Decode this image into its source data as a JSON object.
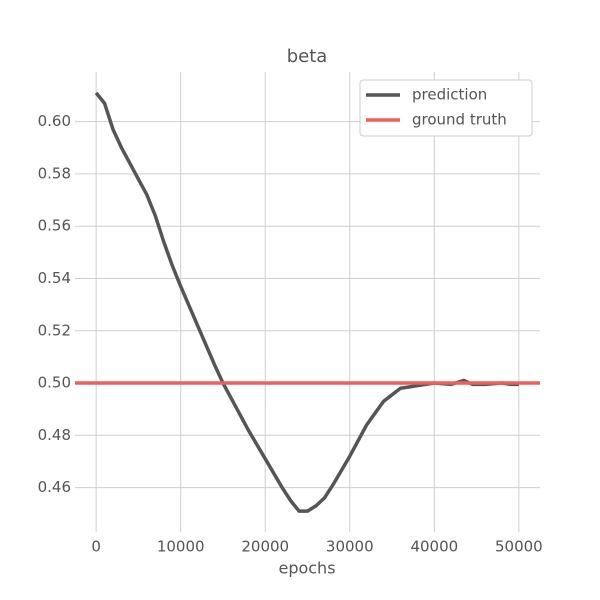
{
  "chart_data": {
    "type": "line",
    "title": "beta",
    "xlabel": "epochs",
    "xlim": [
      -2500,
      52500
    ],
    "xticks": [
      0,
      10000,
      20000,
      30000,
      40000,
      50000
    ],
    "ylim": [
      0.443,
      0.619
    ],
    "yticks": [
      {
        "value": 0.46,
        "label": "0.46"
      },
      {
        "value": 0.48,
        "label": "0.48"
      },
      {
        "value": 0.5,
        "label": "0.50"
      },
      {
        "value": 0.52,
        "label": "0.52"
      },
      {
        "value": 0.54,
        "label": "0.54"
      },
      {
        "value": 0.56,
        "label": "0.56"
      },
      {
        "value": 0.58,
        "label": "0.58"
      },
      {
        "value": 0.6,
        "label": "0.60"
      }
    ],
    "grid": true,
    "legend": "upper right",
    "series": [
      {
        "name": "prediction",
        "color": "#555555",
        "x": [
          0,
          500,
          1000,
          2000,
          3000,
          4000,
          5000,
          6000,
          7000,
          8000,
          9000,
          10000,
          12000,
          14000,
          15000,
          16000,
          18000,
          20000,
          22000,
          23000,
          24000,
          25000,
          26000,
          27000,
          28000,
          30000,
          32000,
          34000,
          36000,
          38000,
          40000,
          42000,
          43500,
          44500,
          46000,
          48000,
          49000,
          50000
        ],
        "values": [
          0.611,
          0.609,
          0.607,
          0.597,
          0.59,
          0.584,
          0.578,
          0.572,
          0.564,
          0.554,
          0.545,
          0.537,
          0.522,
          0.507,
          0.5,
          0.494,
          0.482,
          0.471,
          0.46,
          0.455,
          0.451,
          0.451,
          0.453,
          0.456,
          0.461,
          0.472,
          0.484,
          0.493,
          0.498,
          0.499,
          0.5,
          0.4995,
          0.501,
          0.4995,
          0.4995,
          0.5,
          0.4995,
          0.4995
        ]
      },
      {
        "name": "ground truth",
        "color": "#ef5f5b",
        "x": [
          -2500,
          52500
        ],
        "values": [
          0.5,
          0.5
        ]
      }
    ]
  }
}
